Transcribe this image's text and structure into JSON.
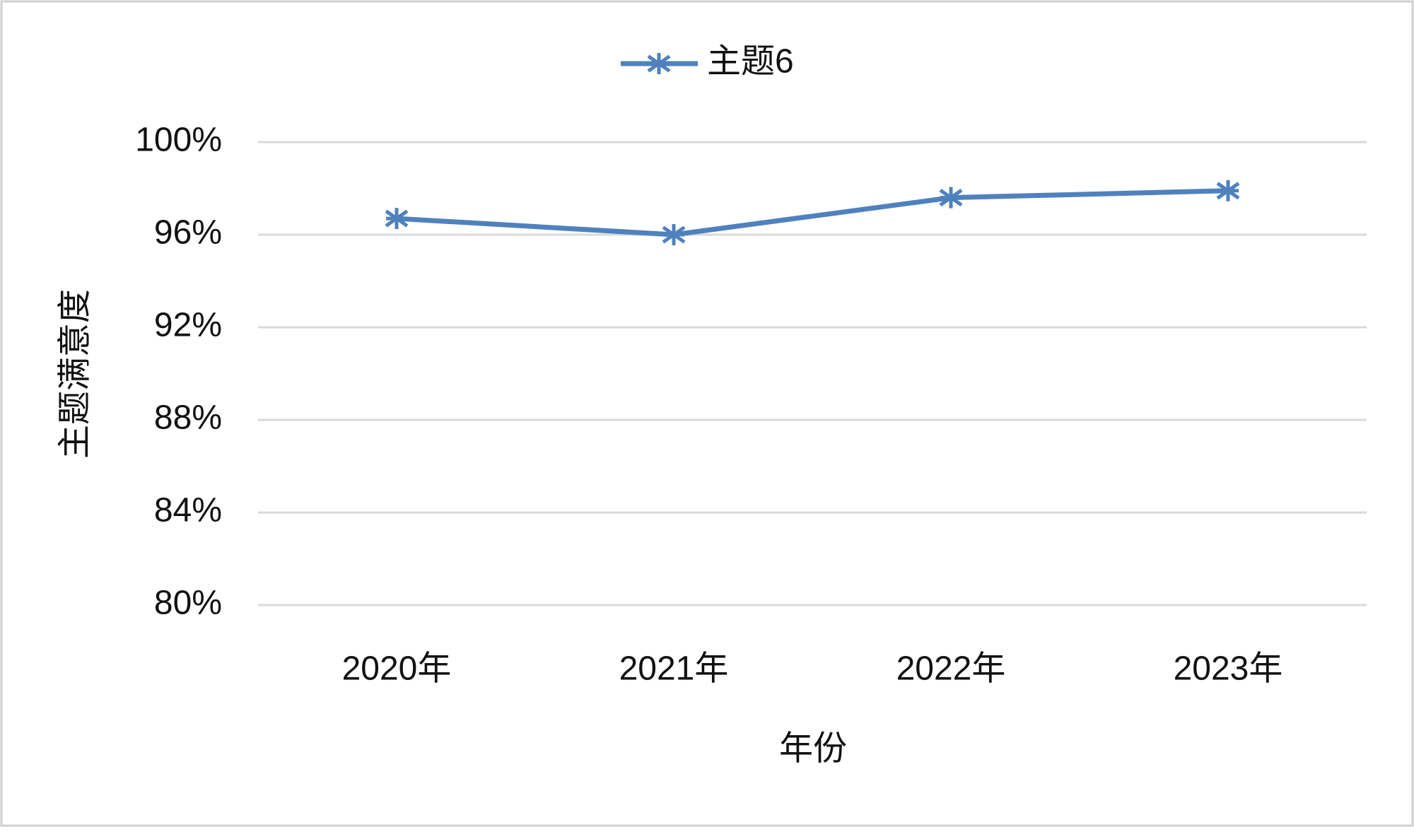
{
  "chart_data": {
    "type": "line",
    "x_label": "年份",
    "y_label": "主题满意度",
    "categories": [
      "2020年",
      "2021年",
      "2022年",
      "2023年"
    ],
    "series": [
      {
        "name": "主题6",
        "color": "#4f81bd",
        "values": [
          96.7,
          96.0,
          97.6,
          97.9
        ]
      }
    ],
    "ylim": [
      80,
      100
    ],
    "yticks": [
      {
        "value": 80,
        "label": "80%"
      },
      {
        "value": 84,
        "label": "84%"
      },
      {
        "value": 88,
        "label": "88%"
      },
      {
        "value": 92,
        "label": "92%"
      },
      {
        "value": 96,
        "label": "96%"
      },
      {
        "value": 100,
        "label": "100%"
      }
    ],
    "grid": true,
    "legend": "top"
  }
}
